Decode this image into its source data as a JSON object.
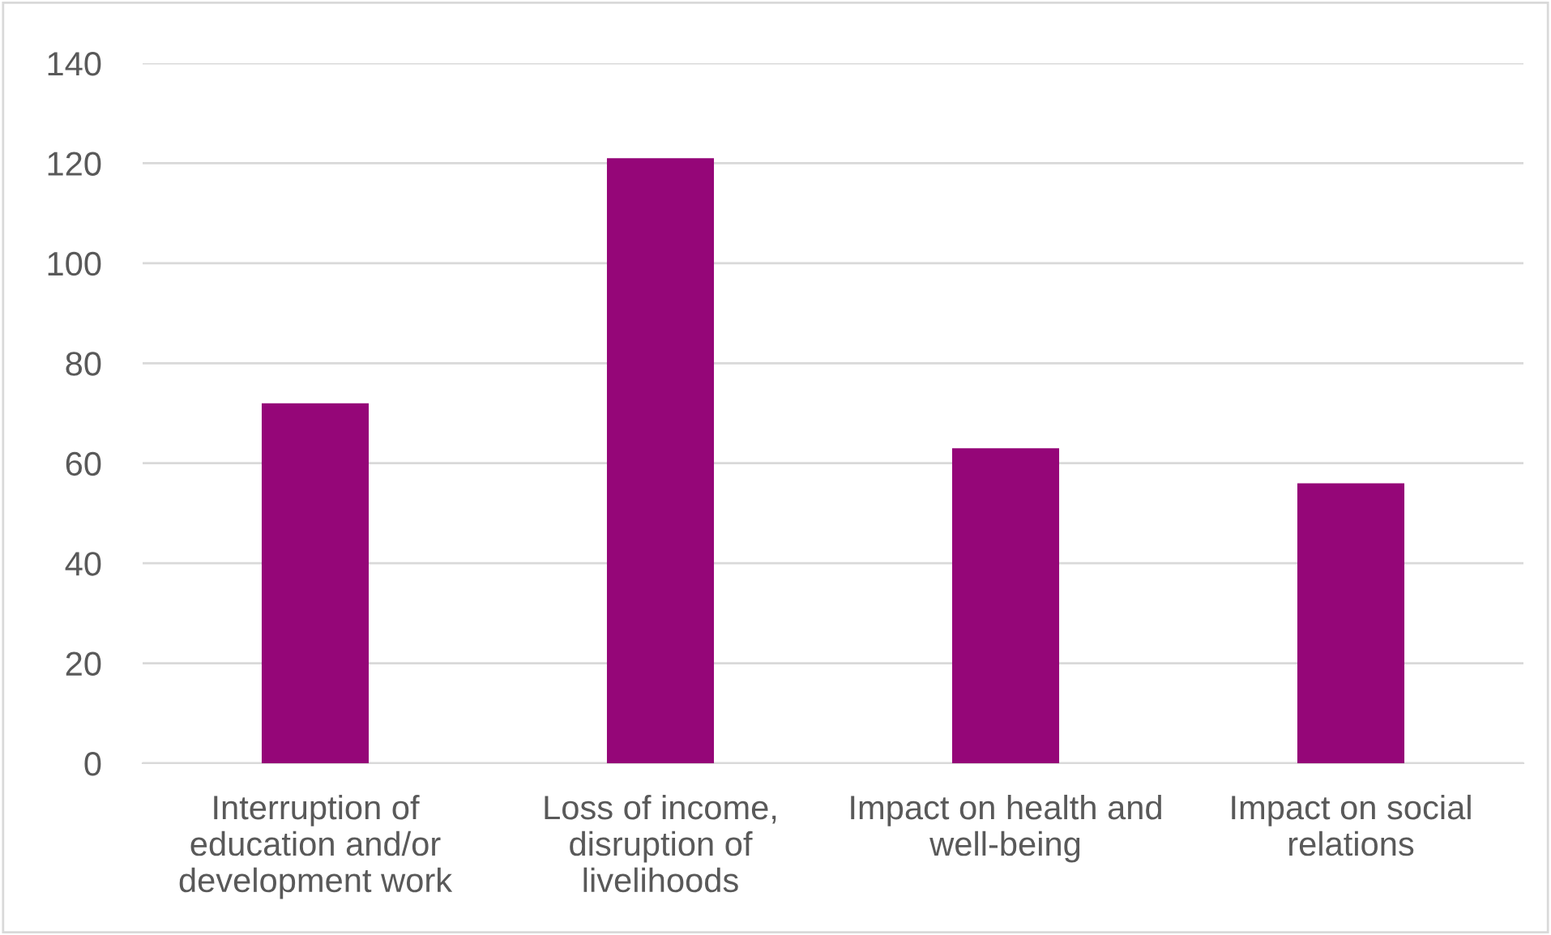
{
  "chart_data": {
    "type": "bar",
    "categories": [
      "Interruption of education and/or development work",
      "Loss of income, disruption of livelihoods",
      "Impact on health and well-being",
      "Impact on social relations"
    ],
    "values": [
      72,
      121,
      63,
      56
    ],
    "color": "#950678",
    "ylim": [
      0,
      140
    ],
    "yticks": [
      0,
      20,
      40,
      60,
      80,
      100,
      120,
      140
    ],
    "grid": "y"
  }
}
